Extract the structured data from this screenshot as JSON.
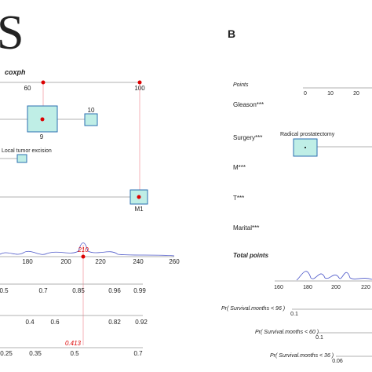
{
  "left": {
    "letter": "S",
    "title": "coxph",
    "top_ticks": [
      "60",
      "100"
    ],
    "box_labels": [
      "9",
      "10",
      "Local tumor excision",
      "M1"
    ],
    "total_ticks": [
      "180",
      "200",
      "220",
      "240",
      "260"
    ],
    "total_marker": "210",
    "prob_rows": [
      [
        "0.5",
        "0.7",
        "0.85",
        "0.96",
        "0.99"
      ],
      [
        "0.4",
        "0.6",
        "0.82",
        "0.92"
      ],
      [
        "0.25",
        "0.35",
        "0.5",
        "0.7"
      ]
    ],
    "prob_marker": "0.413"
  },
  "right": {
    "letter": "B",
    "points_label": "Points",
    "points_ticks": [
      "0",
      "10",
      "20"
    ],
    "variables": [
      "Gleason***",
      "Surgery***",
      "M***",
      "T***",
      "Marital***"
    ],
    "surgery_label": "Radical prostatectomy",
    "total_label": "Total points",
    "total_ticks": [
      "160",
      "180",
      "200",
      "220"
    ],
    "prob_labels": [
      "Pr( Survival.months < 96 )",
      "Pr( Survival.months < 60 )",
      "Pr( Survival.months < 36 )"
    ],
    "prob_values": [
      "0.1",
      "0.1",
      "0.06"
    ]
  }
}
